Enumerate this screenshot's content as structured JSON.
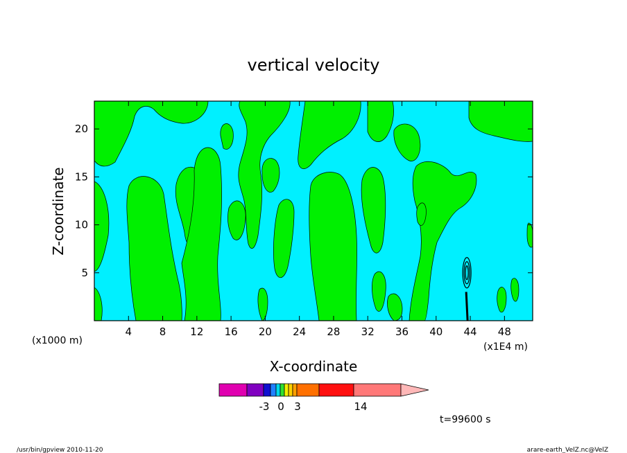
{
  "chart_data": {
    "type": "heatmap",
    "title": "vertical velocity",
    "xlabel": "X-coordinate",
    "ylabel": "Z-coordinate",
    "x_unit": "(x1E4 m)",
    "y_unit": "(x1000 m)",
    "xlim": [
      0,
      51.3
    ],
    "ylim": [
      0,
      22.9
    ],
    "x_ticks": [
      4,
      8,
      12,
      16,
      20,
      24,
      28,
      32,
      36,
      40,
      44,
      48
    ],
    "y_ticks": [
      5,
      10,
      15,
      20
    ],
    "colorbar": {
      "colors": [
        "#e000b0",
        "#8000c0",
        "#1010d0",
        "#2080ff",
        "#00d8e8",
        "#30e030",
        "#f0f000",
        "#ffd000",
        "#ffa000",
        "#ff7000",
        "#ff1010",
        "#ff7878",
        "#ffb8b8"
      ],
      "tick_labels": [
        "-3",
        "0",
        "3",
        "14"
      ],
      "tick_values": [
        -3,
        0,
        3,
        14
      ]
    },
    "fields": {
      "background_color": "#00f0ff",
      "positive_color": "#00f000",
      "strong_contour_color": "#000000"
    },
    "time_label": "t=99600 s"
  },
  "footer": {
    "left": "/usr/bin/gpview  2010-11-20",
    "right": "arare-earth_VelZ.nc@VelZ"
  }
}
